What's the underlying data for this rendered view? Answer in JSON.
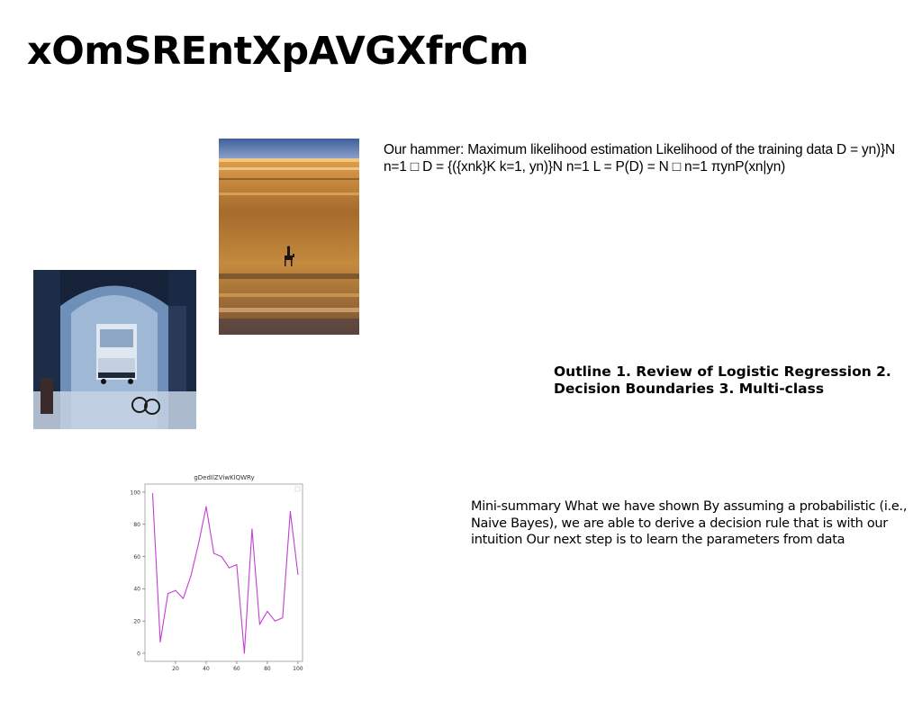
{
  "slide": {
    "title": "xOmSREntXpAVGXfrCm",
    "hammer_text": "Our hammer: Maximum likelihood estimation Likelihood of the training data D = yn)}N n=1 □ D = {({xnk}K k=1, yn)}N n=1 L = P(D) = N □ n=1 πynP(xn|yn)",
    "outline_text": "Outline 1. Review of Logistic Regression 2. Decision Boundaries 3. Multi-class",
    "summary_text": "Mini-summary What we have shown By assuming a probabilistic (i.e., Naive Bayes), we are able to derive a decision rule that is with our intuition Our next step is to learn the parameters from data"
  },
  "images": {
    "beach": {
      "description": "rider on horseback on an orange sandy beach under a blue sky"
    },
    "archway": {
      "description": "blue-tinted stone archway with a parked truck and bicycle"
    }
  },
  "chart_data": {
    "type": "line",
    "title": "gDedIlZViwKlQWRy",
    "xlabel": "",
    "ylabel": "",
    "xlim": [
      0,
      103
    ],
    "ylim": [
      -5,
      105
    ],
    "xticks": [
      20,
      40,
      60,
      80,
      100
    ],
    "yticks": [
      0,
      20,
      40,
      60,
      80,
      100
    ],
    "grid": false,
    "legend": "top-right",
    "color": "#c23fd0",
    "x": [
      5,
      10,
      15,
      20,
      25,
      30,
      35,
      40,
      45,
      50,
      55,
      60,
      65,
      70,
      75,
      80,
      85,
      90,
      95,
      100
    ],
    "y": [
      99,
      7,
      37,
      39,
      34,
      48,
      68,
      91,
      62,
      60,
      53,
      55,
      0,
      77,
      18,
      26,
      20,
      22,
      88,
      49
    ]
  }
}
